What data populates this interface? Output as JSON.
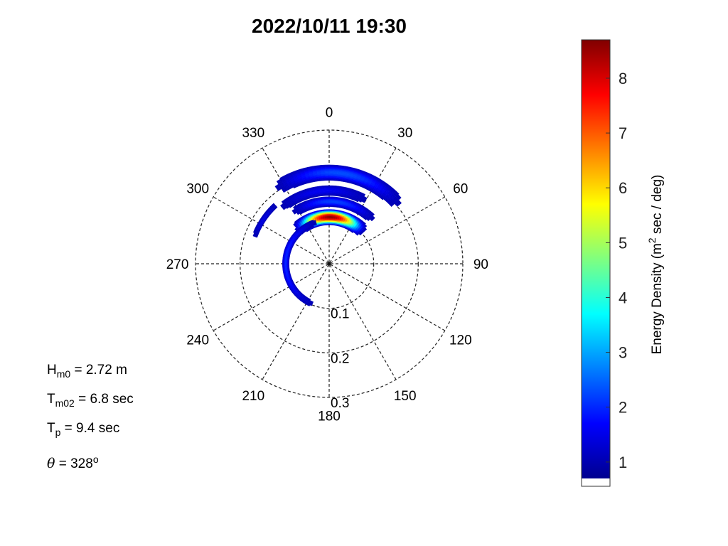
{
  "chart_data": {
    "type": "polar-heatmap",
    "title": "2022/10/11 19:30",
    "angle_ticks": [
      "0",
      "30",
      "60",
      "90",
      "120",
      "150",
      "180",
      "210",
      "240",
      "270",
      "300",
      "330"
    ],
    "radial_ticks": [
      {
        "value": 0.1,
        "label": "0.1"
      },
      {
        "value": 0.2,
        "label": "0.2"
      },
      {
        "value": 0.3,
        "label": "0.3"
      }
    ],
    "rlim": [
      0,
      0.3
    ],
    "grid": true,
    "colorbar": {
      "label": "Energy Density (m",
      "label_sup": "2",
      "label_end": " sec / deg)",
      "range": [
        0.7,
        8.7
      ],
      "ticks": [
        "1",
        "2",
        "3",
        "4",
        "5",
        "6",
        "7",
        "8"
      ],
      "colormap": "jet"
    },
    "features": [
      {
        "direction_from": 325,
        "direction_to": 50,
        "freq_center": 0.205,
        "freq_width": 0.018,
        "peak": 2.3
      },
      {
        "direction_from": 320,
        "direction_to": 30,
        "freq_center": 0.165,
        "freq_width": 0.012,
        "peak": 1.6
      },
      {
        "direction_from": 325,
        "direction_to": 45,
        "freq_center": 0.14,
        "freq_width": 0.012,
        "peak": 2.2
      },
      {
        "direction_from": 315,
        "direction_to": 48,
        "freq_center": 0.105,
        "freq_width": 0.018,
        "peak": 8.6
      },
      {
        "direction_from": 200,
        "direction_to": 345,
        "freq_center": 0.098,
        "freq_width": 0.008,
        "peak": 2.0
      },
      {
        "direction_from": 290,
        "direction_to": 318,
        "freq_center": 0.178,
        "freq_width": 0.006,
        "peak": 1.5
      }
    ]
  },
  "stats": {
    "hm0_main": "H",
    "hm0_sub": "m0",
    "hm0_val": " = 2.72 m",
    "tm02_main": "T",
    "tm02_sub": "m02",
    "tm02_val": " = 6.8 sec",
    "tp_main": "T",
    "tp_sub": "p",
    "tp_val": " = 9.4 sec",
    "theta_symbol": "θ",
    "theta_val": " = 328",
    "theta_sup": "o"
  }
}
